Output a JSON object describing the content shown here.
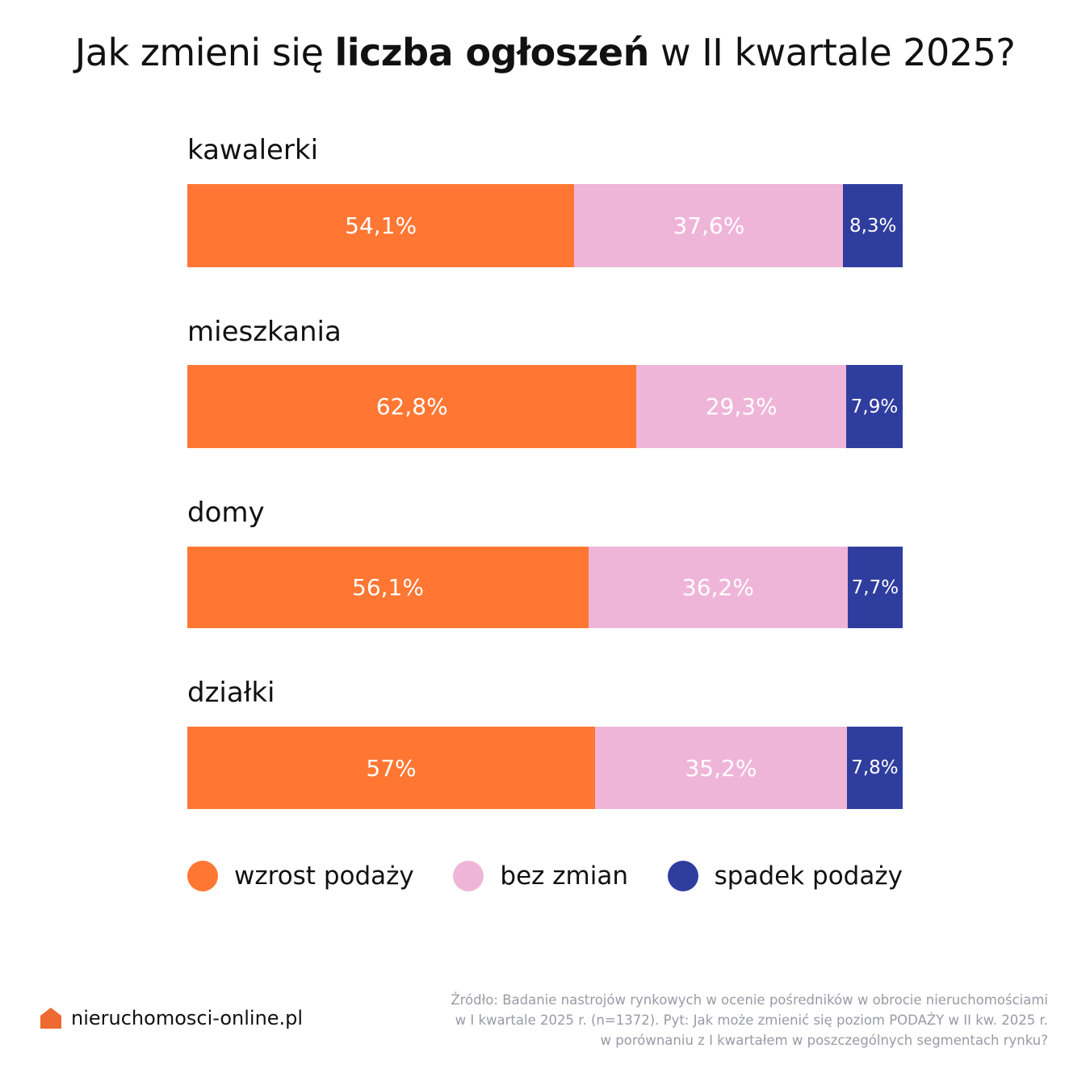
{
  "title": {
    "pre": "Jak zmieni się ",
    "bold": "liczba ogłoszeń",
    "post": " w II kwartale 2025?"
  },
  "chart_data": {
    "type": "bar",
    "orientation": "horizontal",
    "stacked": true,
    "categories": [
      "kawalerki",
      "mieszkania",
      "domy",
      "działki"
    ],
    "series": [
      {
        "name": "wzrost podaży",
        "color": "#ff7733",
        "values": [
          54.1,
          62.8,
          56.1,
          57
        ],
        "labels": [
          "54,1%",
          "62,8%",
          "56,1%",
          "57%"
        ]
      },
      {
        "name": "bez zmian",
        "color": "#efb5d8",
        "values": [
          37.6,
          29.3,
          36.2,
          35.2
        ],
        "labels": [
          "37,6%",
          "29,3%",
          "36,2%",
          "35,2%"
        ]
      },
      {
        "name": "spadek podaży",
        "color": "#2f3e9e",
        "values": [
          8.3,
          7.9,
          7.7,
          7.8
        ],
        "labels": [
          "8,3%",
          "7,9%",
          "7,7%",
          "7,8%"
        ]
      }
    ],
    "xlim": [
      0,
      100
    ],
    "legend_position": "bottom",
    "grid": false
  },
  "footer": {
    "logo_text": "nieruchomosci-online.pl",
    "logo_color": "#ee6a30",
    "source_lines": [
      "Źródło: Badanie nastrojów rynkowych w ocenie pośredników w obrocie nieruchomościami",
      "w I kwartale 2025 r. (n=1372). Pyt: Jak może zmienić się poziom PODAŻY w II kw. 2025 r.",
      "w porównaniu z I kwartałem w poszczególnych segmentach rynku?"
    ]
  }
}
